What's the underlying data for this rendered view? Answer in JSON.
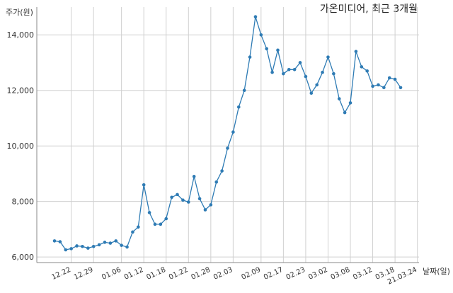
{
  "chart_data": {
    "type": "line",
    "title": "가온미디어, 최근 3개월",
    "xlabel": "날짜(일)",
    "ylabel": "주가(원)",
    "ylim": [
      5800,
      15000
    ],
    "yticks": [
      6000,
      8000,
      10000,
      12000,
      14000
    ],
    "ytick_labels": [
      "6,000",
      "8,000",
      "10,000",
      "12,000",
      "14,000"
    ],
    "grid": true,
    "series_color": "#2e7bb4",
    "xtick_labels": [
      {
        "label": "12.22",
        "index": 3
      },
      {
        "label": "12.29",
        "index": 7
      },
      {
        "label": "01.06",
        "index": 12
      },
      {
        "label": "01.12",
        "index": 16
      },
      {
        "label": "01.18",
        "index": 20
      },
      {
        "label": "01.22",
        "index": 24
      },
      {
        "label": "01.28",
        "index": 28
      },
      {
        "label": "02.03",
        "index": 32
      },
      {
        "label": "02.09",
        "index": 37
      },
      {
        "label": "02.17",
        "index": 41
      },
      {
        "label": "02.23",
        "index": 45
      },
      {
        "label": "03.02",
        "index": 49
      },
      {
        "label": "03.08",
        "index": 53
      },
      {
        "label": "03.12",
        "index": 57
      },
      {
        "label": "03.18",
        "index": 61
      },
      {
        "label": "21.03.24",
        "index": 65
      }
    ],
    "series": [
      {
        "values": [
          6580,
          6550,
          6260,
          6300,
          6400,
          6380,
          6320,
          6380,
          6440,
          6530,
          6500,
          6580,
          6420,
          6360,
          6900,
          7080,
          8600,
          7600,
          7180,
          7180,
          7380,
          8150,
          8250,
          8050,
          7980,
          8900,
          8100,
          7700,
          7880,
          8700,
          9100,
          9920,
          10500,
          11400,
          12000,
          13200,
          14650,
          14000,
          13500,
          12650,
          13450,
          12600,
          12750,
          12750,
          13000,
          12500,
          11900,
          12200,
          12650,
          13200,
          12600,
          11700,
          11200,
          11550,
          13400,
          12850,
          12700,
          12150,
          12200,
          12100,
          12450,
          12400,
          12100
        ]
      }
    ]
  }
}
